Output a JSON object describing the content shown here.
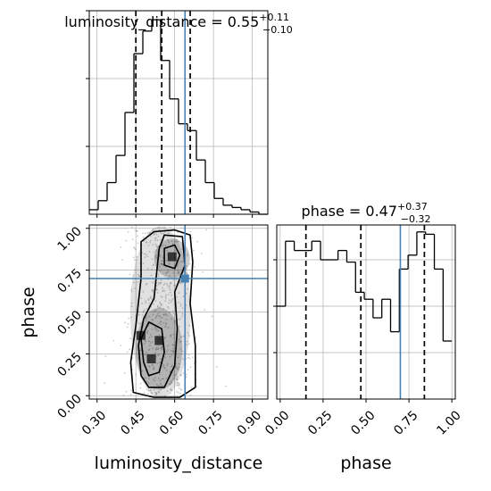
{
  "chart_data": {
    "type": "corner",
    "parameters": [
      "luminosity_distance",
      "phase"
    ],
    "axis_labels": {
      "x_left": "luminosity_distance",
      "x_right": "phase",
      "y_left": "phase"
    },
    "titles": {
      "luminosity_distance": {
        "name": "luminosity_distance",
        "median": "0.55",
        "plus": "+0.11",
        "minus": "−0.10"
      },
      "phase": {
        "name": "phase",
        "median": "0.47",
        "plus": "+0.37",
        "minus": "−0.32"
      }
    },
    "ticks": {
      "luminosity_distance": [
        "0.30",
        "0.45",
        "0.60",
        "0.75",
        "0.90"
      ],
      "phase": [
        "0.00",
        "0.25",
        "0.50",
        "0.75",
        "1.00"
      ]
    },
    "ranges": {
      "luminosity_distance": [
        0.27,
        0.96
      ],
      "phase": [
        -0.02,
        1.02
      ]
    },
    "quantiles": {
      "luminosity_distance": [
        0.45,
        0.55,
        0.66
      ],
      "phase": [
        0.15,
        0.47,
        0.84
      ]
    },
    "truth": {
      "luminosity_distance": 0.64,
      "phase": 0.7,
      "color": "#4682b4"
    },
    "hist_luminosity_distance": {
      "edges": [
        0.27,
        0.3045,
        0.339,
        0.3735,
        0.408,
        0.4425,
        0.477,
        0.5115,
        0.546,
        0.5805,
        0.615,
        0.6495,
        0.684,
        0.7185,
        0.753,
        0.7875,
        0.822,
        0.8565,
        0.891,
        0.9255,
        0.96
      ],
      "values": [
        0.02,
        0.06,
        0.14,
        0.26,
        0.45,
        0.71,
        0.81,
        0.86,
        0.68,
        0.51,
        0.4,
        0.37,
        0.24,
        0.14,
        0.07,
        0.04,
        0.03,
        0.02,
        0.01,
        0.0
      ]
    },
    "hist_phase": {
      "edges": [
        -0.02,
        0.031,
        0.082,
        0.133,
        0.184,
        0.235,
        0.286,
        0.337,
        0.388,
        0.439,
        0.49,
        0.541,
        0.592,
        0.643,
        0.694,
        0.745,
        0.796,
        0.847,
        0.898,
        0.949,
        1.0
      ],
      "values": [
        0.4,
        0.68,
        0.64,
        0.64,
        0.68,
        0.6,
        0.6,
        0.64,
        0.59,
        0.46,
        0.43,
        0.35,
        0.43,
        0.29,
        0.56,
        0.62,
        0.72,
        0.71,
        0.56,
        0.25
      ]
    },
    "density_2d": {
      "x": [
        0.45,
        0.55,
        0.66
      ],
      "y": [
        0.15,
        0.47,
        0.84
      ],
      "peaks": [
        {
          "x": 0.47,
          "y": 0.36,
          "level": "high"
        },
        {
          "x": 0.51,
          "y": 0.22,
          "level": "high"
        },
        {
          "x": 0.59,
          "y": 0.83,
          "level": "high"
        },
        {
          "x": 0.54,
          "y": 0.33,
          "level": "high"
        }
      ]
    },
    "grid": true,
    "colors": {
      "hist": "#000000",
      "quantile": "#000000",
      "truth": "#4682b4",
      "grid": "#b0b0b0",
      "scatter": "#8c8c8c"
    }
  }
}
